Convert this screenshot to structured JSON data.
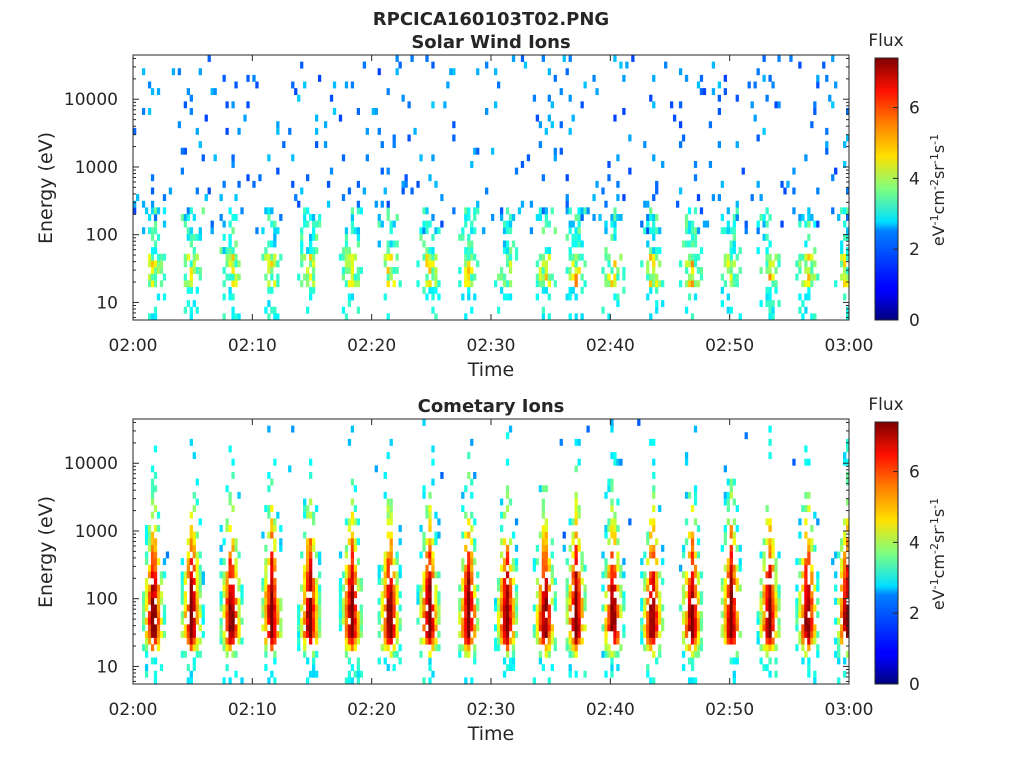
{
  "figure_title": "RPCICA160103T02.PNG",
  "chart_data": [
    {
      "type": "heatmap",
      "title": "Solar Wind Ions",
      "xlabel": "Time",
      "ylabel": "Energy (eV)",
      "x_range": [
        "02:00",
        "03:00"
      ],
      "x_ticks": [
        "02:00",
        "02:10",
        "02:20",
        "02:30",
        "02:40",
        "02:50",
        "03:00"
      ],
      "y_scale": "log",
      "y_range": [
        5.5,
        45000
      ],
      "y_ticks": [
        {
          "value": 10,
          "label": "10"
        },
        {
          "value": 100,
          "label": "100"
        },
        {
          "value": 1000,
          "label": "1000"
        },
        {
          "value": 10000,
          "label": "10000"
        }
      ],
      "colorbar": {
        "title": "Flux",
        "label": "eV-1cm-2sr-1s-1",
        "range": [
          0,
          7.4
        ],
        "ticks": [
          0,
          2,
          4,
          6
        ],
        "colormap": "jet"
      },
      "pulse_minutes": [
        1.6,
        4.8,
        8.1,
        11.5,
        14.7,
        18.2,
        21.4,
        24.7,
        28.0,
        31.2,
        34.4,
        37.0,
        40.1,
        43.4,
        46.7,
        50.0,
        53.2,
        56.4,
        59.7
      ],
      "component": "sparse high-energy noise (1e2 to 3e4 eV, flux 1.5-2.5) plus low-energy bursts (10 to 300 eV, flux 2-5.5)",
      "grid": false
    },
    {
      "type": "heatmap",
      "title": "Cometary Ions",
      "xlabel": "Time",
      "ylabel": "Energy (eV)",
      "x_range": [
        "02:00",
        "03:00"
      ],
      "x_ticks": [
        "02:00",
        "02:10",
        "02:20",
        "02:30",
        "02:40",
        "02:50",
        "03:00"
      ],
      "y_scale": "log",
      "y_range": [
        5.5,
        45000
      ],
      "y_ticks": [
        {
          "value": 10,
          "label": "10"
        },
        {
          "value": 100,
          "label": "100"
        },
        {
          "value": 1000,
          "label": "1000"
        },
        {
          "value": 10000,
          "label": "10000"
        }
      ],
      "colorbar": {
        "title": "Flux",
        "label": "eV-1cm-2sr-1s-1",
        "range": [
          0,
          7.4
        ],
        "ticks": [
          0,
          2,
          4,
          6
        ],
        "colormap": "jet"
      },
      "pulse_minutes": [
        1.6,
        4.8,
        8.1,
        11.5,
        14.7,
        18.2,
        21.4,
        24.7,
        28.0,
        31.2,
        34.4,
        37.0,
        40.1,
        43.4,
        46.7,
        50.0,
        53.2,
        56.4,
        59.7
      ],
      "component": "strong periodic bursts peaking near 30-40 eV (flux up to ~7) tailing to ~1e4 eV",
      "grid": false
    }
  ]
}
